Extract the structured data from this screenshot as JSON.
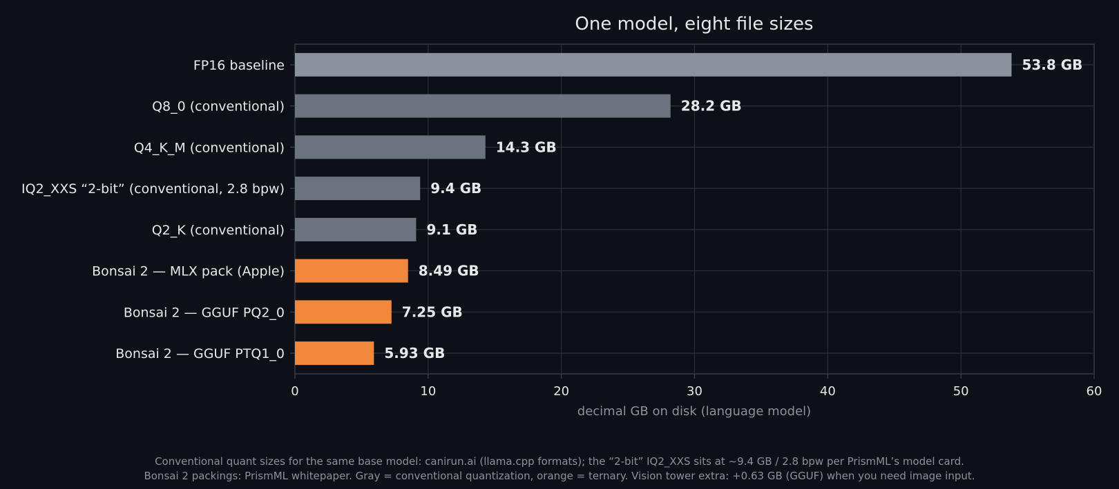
{
  "chart_data": {
    "type": "bar",
    "orientation": "horizontal",
    "title": "One model, eight file sizes",
    "xlabel": "decimal GB on disk (language model)",
    "ylabel": "",
    "xlim": [
      0,
      60
    ],
    "xticks": [
      0,
      10,
      20,
      30,
      40,
      50,
      60
    ],
    "grid": true,
    "categories": [
      "FP16 baseline",
      "Q8_0 (conventional)",
      "Q4_K_M (conventional)",
      "IQ2_XXS “2-bit” (conventional, 2.8 bpw)",
      "Q2_K (conventional)",
      "Bonsai 2 — MLX pack (Apple)",
      "Bonsai 2 — GGUF PQ2_0",
      "Bonsai 2 — GGUF PTQ1_0"
    ],
    "values": [
      53.8,
      28.2,
      14.3,
      9.4,
      9.1,
      8.49,
      7.25,
      5.93
    ],
    "value_labels": [
      "53.8 GB",
      "28.2 GB",
      "14.3 GB",
      "9.4 GB",
      "9.1 GB",
      "8.49 GB",
      "7.25 GB",
      "5.93 GB"
    ],
    "bar_colors": [
      "#8a929e",
      "#6b7380",
      "#6b7380",
      "#6b7380",
      "#6b7380",
      "#f0883e",
      "#f0883e",
      "#f0883e"
    ]
  },
  "colors": {
    "background": "#0d1017",
    "text": "#e6e8eb",
    "muted": "#8b919b",
    "grid": "#2a2f38",
    "spine": "#3a404a",
    "conventional": "#6b7380",
    "baseline": "#8a929e",
    "ternary": "#f0883e"
  },
  "footnote": {
    "line1": "Conventional quant sizes for the same base model: canirun.ai (llama.cpp formats); the “2-bit” IQ2_XXS sits at ~9.4 GB / 2.8 bpw per PrismML’s model card.",
    "line2": "Bonsai 2 packings: PrismML whitepaper. Gray = conventional quantization, orange = ternary. Vision tower extra: +0.63 GB (GGUF) when you need image input."
  }
}
